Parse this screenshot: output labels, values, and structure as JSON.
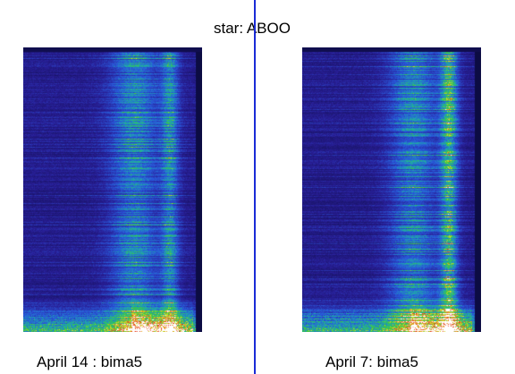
{
  "title": "star: ABOO",
  "panels": [
    {
      "caption": "April 14 : bima5"
    },
    {
      "caption": "April 7: bima5"
    }
  ],
  "colors": {
    "background": "#ffffff",
    "divider": "#1a2bd6",
    "spectrogram_base": "#0c0c4a"
  }
}
